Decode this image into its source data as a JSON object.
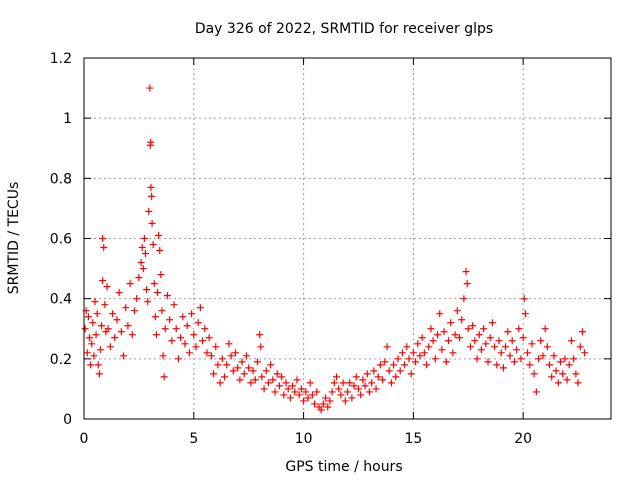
{
  "chart_data": {
    "type": "scatter",
    "title": "Day 326 of 2022, SRMTID for receiver glps",
    "xlabel": "GPS time / hours",
    "ylabel": "SRMTID / TECUs",
    "xlim": [
      0,
      24
    ],
    "ylim": [
      0,
      1.2
    ],
    "x_ticks": [
      0,
      5,
      10,
      15,
      20
    ],
    "x_tick_labels": [
      "0",
      "5",
      "10",
      "15",
      "20"
    ],
    "y_ticks": [
      0,
      0.2,
      0.4,
      0.6,
      0.8,
      1.0,
      1.2
    ],
    "y_tick_labels": [
      "0",
      "0.2",
      "0.4",
      "0.6",
      "0.8",
      "1",
      "1.2"
    ],
    "grid": true,
    "marker": "+",
    "color": "#ff0000",
    "series": [
      {
        "name": "SRMTID",
        "points": [
          [
            0.05,
            0.3
          ],
          [
            0.1,
            0.36
          ],
          [
            0.15,
            0.22
          ],
          [
            0.2,
            0.34
          ],
          [
            0.25,
            0.27
          ],
          [
            0.3,
            0.18
          ],
          [
            0.35,
            0.25
          ],
          [
            0.4,
            0.32
          ],
          [
            0.45,
            0.21
          ],
          [
            0.5,
            0.39
          ],
          [
            0.55,
            0.28
          ],
          [
            0.6,
            0.35
          ],
          [
            0.65,
            0.18
          ],
          [
            0.7,
            0.15
          ],
          [
            0.75,
            0.23
          ],
          [
            0.8,
            0.31
          ],
          [
            0.85,
            0.46
          ],
          [
            0.85,
            0.6
          ],
          [
            0.9,
            0.57
          ],
          [
            0.95,
            0.38
          ],
          [
            1.0,
            0.29
          ],
          [
            1.05,
            0.44
          ],
          [
            1.1,
            0.3
          ],
          [
            1.2,
            0.24
          ],
          [
            1.3,
            0.35
          ],
          [
            1.4,
            0.27
          ],
          [
            1.5,
            0.33
          ],
          [
            1.6,
            0.42
          ],
          [
            1.7,
            0.29
          ],
          [
            1.8,
            0.21
          ],
          [
            1.9,
            0.37
          ],
          [
            2.0,
            0.31
          ],
          [
            2.1,
            0.45
          ],
          [
            2.2,
            0.28
          ],
          [
            2.3,
            0.36
          ],
          [
            2.4,
            0.4
          ],
          [
            2.5,
            0.47
          ],
          [
            2.6,
            0.52
          ],
          [
            2.65,
            0.57
          ],
          [
            2.7,
            0.5
          ],
          [
            2.75,
            0.6
          ],
          [
            2.8,
            0.55
          ],
          [
            2.85,
            0.43
          ],
          [
            2.9,
            0.39
          ],
          [
            2.95,
            0.69
          ],
          [
            3.0,
            1.1
          ],
          [
            3.02,
            0.91
          ],
          [
            3.04,
            0.92
          ],
          [
            3.05,
            0.77
          ],
          [
            3.08,
            0.74
          ],
          [
            3.1,
            0.65
          ],
          [
            3.15,
            0.58
          ],
          [
            3.2,
            0.45
          ],
          [
            3.25,
            0.34
          ],
          [
            3.3,
            0.28
          ],
          [
            3.35,
            0.42
          ],
          [
            3.4,
            0.61
          ],
          [
            3.45,
            0.56
          ],
          [
            3.5,
            0.48
          ],
          [
            3.55,
            0.36
          ],
          [
            3.6,
            0.21
          ],
          [
            3.65,
            0.14
          ],
          [
            3.7,
            0.3
          ],
          [
            3.8,
            0.41
          ],
          [
            3.9,
            0.33
          ],
          [
            4.0,
            0.26
          ],
          [
            4.1,
            0.38
          ],
          [
            4.2,
            0.3
          ],
          [
            4.3,
            0.2
          ],
          [
            4.4,
            0.27
          ],
          [
            4.5,
            0.34
          ],
          [
            4.6,
            0.25
          ],
          [
            4.7,
            0.31
          ],
          [
            4.8,
            0.22
          ],
          [
            4.9,
            0.35
          ],
          [
            5.0,
            0.28
          ],
          [
            5.1,
            0.24
          ],
          [
            5.2,
            0.32
          ],
          [
            5.3,
            0.37
          ],
          [
            5.4,
            0.26
          ],
          [
            5.5,
            0.3
          ],
          [
            5.6,
            0.22
          ],
          [
            5.7,
            0.27
          ],
          [
            5.8,
            0.21
          ],
          [
            5.9,
            0.15
          ],
          [
            6.0,
            0.24
          ],
          [
            6.1,
            0.18
          ],
          [
            6.2,
            0.12
          ],
          [
            6.3,
            0.2
          ],
          [
            6.4,
            0.14
          ],
          [
            6.5,
            0.18
          ],
          [
            6.6,
            0.25
          ],
          [
            6.7,
            0.21
          ],
          [
            6.8,
            0.16
          ],
          [
            6.9,
            0.22
          ],
          [
            7.0,
            0.17
          ],
          [
            7.1,
            0.13
          ],
          [
            7.2,
            0.19
          ],
          [
            7.3,
            0.15
          ],
          [
            7.4,
            0.21
          ],
          [
            7.5,
            0.17
          ],
          [
            7.6,
            0.12
          ],
          [
            7.7,
            0.16
          ],
          [
            7.8,
            0.13
          ],
          [
            7.9,
            0.19
          ],
          [
            8.0,
            0.28
          ],
          [
            8.05,
            0.24
          ],
          [
            8.1,
            0.14
          ],
          [
            8.2,
            0.1
          ],
          [
            8.3,
            0.16
          ],
          [
            8.4,
            0.12
          ],
          [
            8.5,
            0.18
          ],
          [
            8.6,
            0.13
          ],
          [
            8.7,
            0.09
          ],
          [
            8.8,
            0.15
          ],
          [
            8.9,
            0.11
          ],
          [
            9.0,
            0.14
          ],
          [
            9.1,
            0.08
          ],
          [
            9.2,
            0.12
          ],
          [
            9.3,
            0.1
          ],
          [
            9.4,
            0.07
          ],
          [
            9.5,
            0.11
          ],
          [
            9.6,
            0.09
          ],
          [
            9.7,
            0.13
          ],
          [
            9.8,
            0.08
          ],
          [
            9.9,
            0.1
          ],
          [
            10.0,
            0.06
          ],
          [
            10.1,
            0.09
          ],
          [
            10.2,
            0.07
          ],
          [
            10.3,
            0.12
          ],
          [
            10.4,
            0.08
          ],
          [
            10.5,
            0.05
          ],
          [
            10.6,
            0.09
          ],
          [
            10.7,
            0.04
          ],
          [
            10.8,
            0.03
          ],
          [
            10.9,
            0.05
          ],
          [
            11.0,
            0.07
          ],
          [
            11.1,
            0.04
          ],
          [
            11.2,
            0.06
          ],
          [
            11.3,
            0.09
          ],
          [
            11.4,
            0.12
          ],
          [
            11.5,
            0.14
          ],
          [
            11.6,
            0.1
          ],
          [
            11.7,
            0.08
          ],
          [
            11.8,
            0.12
          ],
          [
            11.9,
            0.06
          ],
          [
            12.0,
            0.09
          ],
          [
            12.1,
            0.12
          ],
          [
            12.2,
            0.07
          ],
          [
            12.3,
            0.11
          ],
          [
            12.4,
            0.14
          ],
          [
            12.5,
            0.1
          ],
          [
            12.6,
            0.08
          ],
          [
            12.7,
            0.13
          ],
          [
            12.8,
            0.11
          ],
          [
            12.9,
            0.15
          ],
          [
            13.0,
            0.09
          ],
          [
            13.1,
            0.12
          ],
          [
            13.2,
            0.16
          ],
          [
            13.3,
            0.1
          ],
          [
            13.4,
            0.14
          ],
          [
            13.5,
            0.18
          ],
          [
            13.6,
            0.13
          ],
          [
            13.7,
            0.19
          ],
          [
            13.8,
            0.24
          ],
          [
            13.9,
            0.16
          ],
          [
            14.0,
            0.12
          ],
          [
            14.1,
            0.18
          ],
          [
            14.2,
            0.14
          ],
          [
            14.3,
            0.2
          ],
          [
            14.4,
            0.16
          ],
          [
            14.5,
            0.22
          ],
          [
            14.6,
            0.18
          ],
          [
            14.7,
            0.24
          ],
          [
            14.8,
            0.2
          ],
          [
            14.9,
            0.15
          ],
          [
            15.0,
            0.22
          ],
          [
            15.1,
            0.19
          ],
          [
            15.2,
            0.25
          ],
          [
            15.3,
            0.21
          ],
          [
            15.4,
            0.27
          ],
          [
            15.5,
            0.22
          ],
          [
            15.6,
            0.18
          ],
          [
            15.7,
            0.24
          ],
          [
            15.8,
            0.3
          ],
          [
            15.9,
            0.26
          ],
          [
            16.0,
            0.2
          ],
          [
            16.1,
            0.28
          ],
          [
            16.2,
            0.35
          ],
          [
            16.3,
            0.23
          ],
          [
            16.4,
            0.29
          ],
          [
            16.5,
            0.19
          ],
          [
            16.6,
            0.26
          ],
          [
            16.7,
            0.32
          ],
          [
            16.8,
            0.22
          ],
          [
            16.9,
            0.28
          ],
          [
            17.0,
            0.36
          ],
          [
            17.1,
            0.27
          ],
          [
            17.2,
            0.33
          ],
          [
            17.3,
            0.4
          ],
          [
            17.4,
            0.49
          ],
          [
            17.45,
            0.45
          ],
          [
            17.5,
            0.3
          ],
          [
            17.6,
            0.24
          ],
          [
            17.7,
            0.31
          ],
          [
            17.8,
            0.26
          ],
          [
            17.9,
            0.2
          ],
          [
            18.0,
            0.28
          ],
          [
            18.1,
            0.23
          ],
          [
            18.2,
            0.3
          ],
          [
            18.3,
            0.25
          ],
          [
            18.4,
            0.19
          ],
          [
            18.5,
            0.27
          ],
          [
            18.6,
            0.32
          ],
          [
            18.7,
            0.24
          ],
          [
            18.8,
            0.18
          ],
          [
            18.9,
            0.26
          ],
          [
            19.0,
            0.22
          ],
          [
            19.1,
            0.17
          ],
          [
            19.2,
            0.24
          ],
          [
            19.3,
            0.29
          ],
          [
            19.4,
            0.21
          ],
          [
            19.5,
            0.26
          ],
          [
            19.6,
            0.19
          ],
          [
            19.7,
            0.23
          ],
          [
            19.8,
            0.3
          ],
          [
            19.9,
            0.2
          ],
          [
            20.0,
            0.27
          ],
          [
            20.05,
            0.4
          ],
          [
            20.1,
            0.35
          ],
          [
            20.2,
            0.22
          ],
          [
            20.3,
            0.18
          ],
          [
            20.4,
            0.25
          ],
          [
            20.5,
            0.15
          ],
          [
            20.6,
            0.09
          ],
          [
            20.7,
            0.2
          ],
          [
            20.8,
            0.26
          ],
          [
            20.9,
            0.21
          ],
          [
            21.0,
            0.3
          ],
          [
            21.1,
            0.24
          ],
          [
            21.2,
            0.18
          ],
          [
            21.3,
            0.14
          ],
          [
            21.4,
            0.21
          ],
          [
            21.5,
            0.16
          ],
          [
            21.6,
            0.12
          ],
          [
            21.7,
            0.19
          ],
          [
            21.8,
            0.15
          ],
          [
            21.9,
            0.2
          ],
          [
            22.0,
            0.13
          ],
          [
            22.1,
            0.18
          ],
          [
            22.2,
            0.26
          ],
          [
            22.3,
            0.2
          ],
          [
            22.4,
            0.15
          ],
          [
            22.5,
            0.12
          ],
          [
            22.6,
            0.24
          ],
          [
            22.7,
            0.29
          ],
          [
            22.8,
            0.22
          ]
        ]
      }
    ]
  }
}
